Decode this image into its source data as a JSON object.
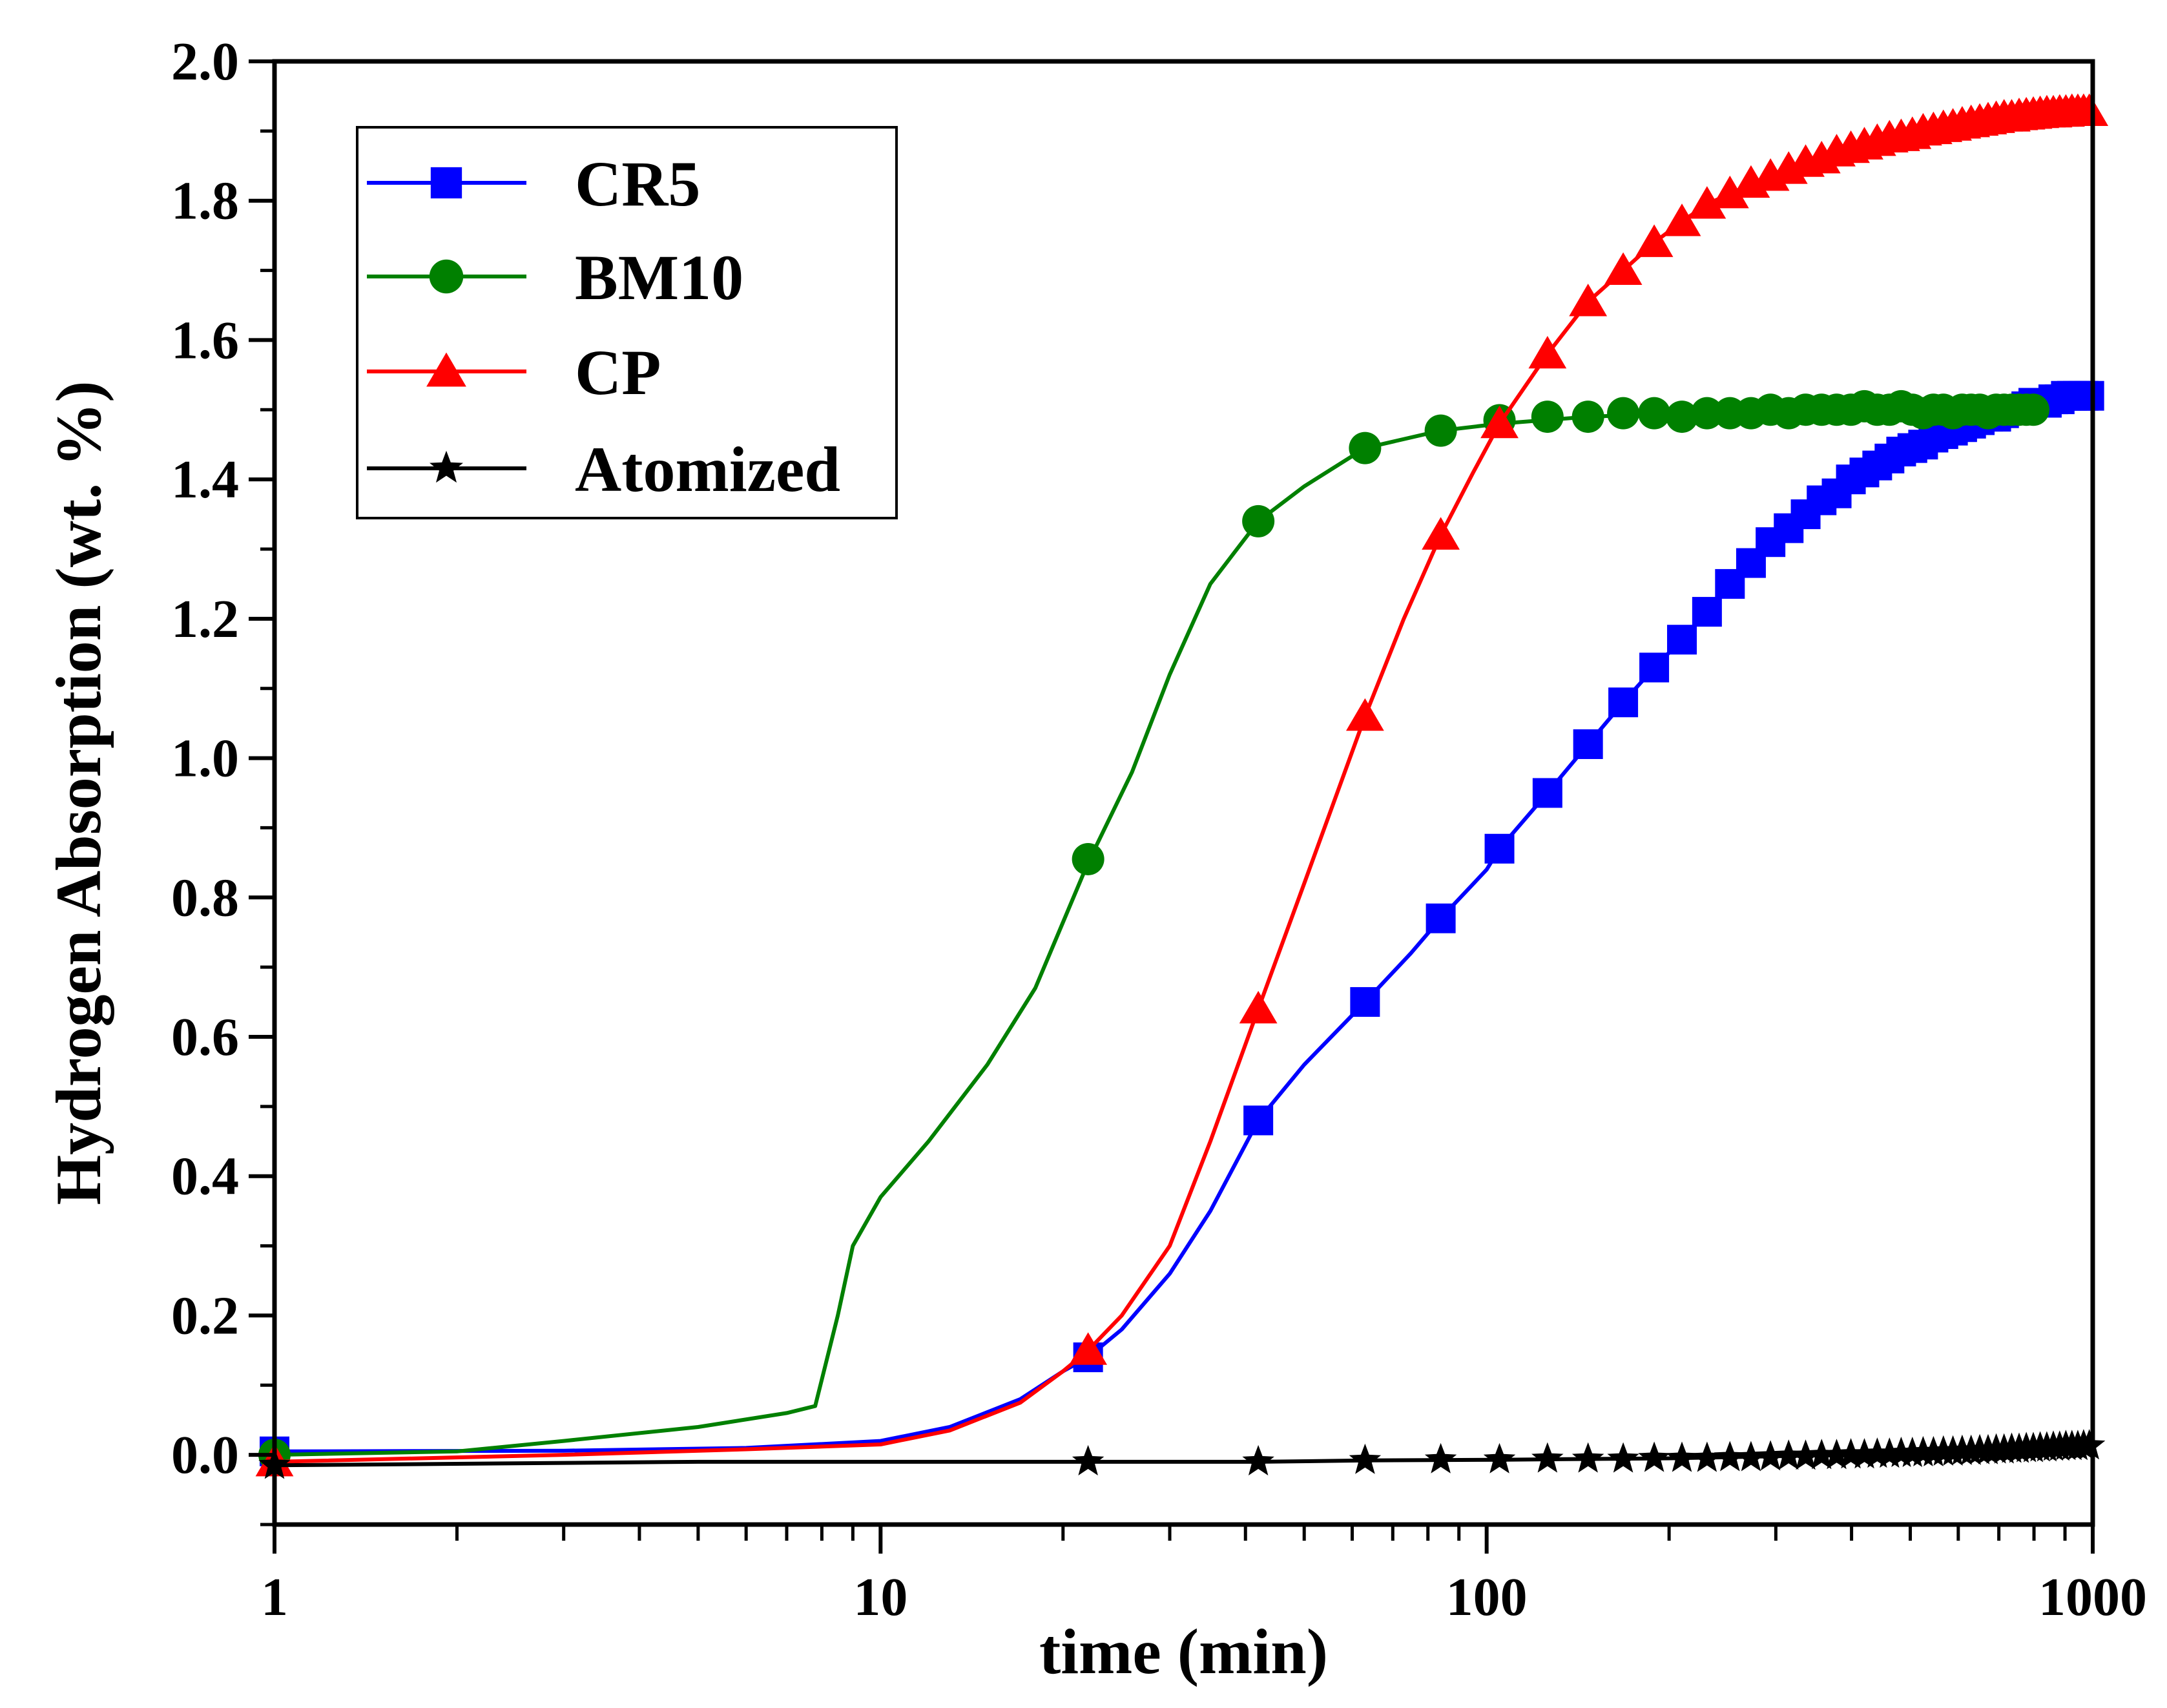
{
  "chart_data": {
    "type": "line",
    "title": "",
    "xlabel": "time (min)",
    "ylabel": "Hydrogen Absorption (wt. %)",
    "x_scale": "log",
    "xlim": [
      1,
      1000
    ],
    "ylim": [
      -0.1,
      2.0
    ],
    "x_ticks": [
      1,
      10,
      100,
      1000
    ],
    "x_tick_labels": [
      "1",
      "10",
      "100",
      "1000"
    ],
    "y_ticks": [
      0.0,
      0.2,
      0.4,
      0.6,
      0.8,
      1.0,
      1.2,
      1.4,
      1.6,
      1.8,
      2.0
    ],
    "y_tick_labels": [
      "0.0",
      "0.2",
      "0.4",
      "0.6",
      "0.8",
      "1.0",
      "1.2",
      "1.4",
      "1.6",
      "1.8",
      "2.0"
    ],
    "grid": false,
    "legend_position": "top-left",
    "series": [
      {
        "name": "CR5",
        "color": "#0000ff",
        "marker": "square",
        "line": [
          [
            1,
            0.005
          ],
          [
            3,
            0.006
          ],
          [
            6,
            0.01
          ],
          [
            10,
            0.02
          ],
          [
            13,
            0.04
          ],
          [
            17,
            0.08
          ],
          [
            20,
            0.12
          ],
          [
            22,
            0.14
          ],
          [
            25,
            0.18
          ],
          [
            30,
            0.26
          ],
          [
            35,
            0.35
          ],
          [
            42,
            0.48
          ],
          [
            50,
            0.56
          ],
          [
            63,
            0.65
          ],
          [
            75,
            0.72
          ],
          [
            84,
            0.77
          ],
          [
            100,
            0.84
          ],
          [
            105,
            0.87
          ],
          [
            126,
            0.95
          ],
          [
            147,
            1.02
          ],
          [
            168,
            1.08
          ],
          [
            189,
            1.13
          ],
          [
            210,
            1.17
          ],
          [
            231,
            1.21
          ],
          [
            252,
            1.25
          ],
          [
            273,
            1.28
          ],
          [
            300,
            1.31
          ],
          [
            350,
            1.35
          ],
          [
            400,
            1.39
          ],
          [
            500,
            1.44
          ],
          [
            600,
            1.47
          ],
          [
            700,
            1.49
          ],
          [
            800,
            1.51
          ],
          [
            1000,
            1.52
          ]
        ],
        "markers": [
          [
            1,
            0.005
          ],
          [
            22,
            0.14
          ],
          [
            42,
            0.48
          ],
          [
            63,
            0.65
          ],
          [
            84,
            0.77
          ],
          [
            105,
            0.87
          ],
          [
            126,
            0.95
          ],
          [
            147,
            1.02
          ],
          [
            168,
            1.08
          ],
          [
            189,
            1.13
          ],
          [
            210,
            1.17
          ],
          [
            231,
            1.21
          ],
          [
            252,
            1.25
          ],
          [
            273,
            1.28
          ],
          [
            294,
            1.31
          ],
          [
            315,
            1.33
          ],
          [
            336,
            1.35
          ],
          [
            357,
            1.37
          ],
          [
            378,
            1.38
          ],
          [
            399,
            1.4
          ],
          [
            420,
            1.41
          ],
          [
            441,
            1.42
          ],
          [
            462,
            1.43
          ],
          [
            483,
            1.44
          ],
          [
            504,
            1.445
          ],
          [
            525,
            1.45
          ],
          [
            546,
            1.46
          ],
          [
            567,
            1.465
          ],
          [
            588,
            1.47
          ],
          [
            609,
            1.475
          ],
          [
            630,
            1.48
          ],
          [
            651,
            1.485
          ],
          [
            672,
            1.49
          ],
          [
            693,
            1.49
          ],
          [
            714,
            1.495
          ],
          [
            735,
            1.5
          ],
          [
            756,
            1.5
          ],
          [
            777,
            1.505
          ],
          [
            798,
            1.51
          ],
          [
            819,
            1.51
          ],
          [
            840,
            1.51
          ],
          [
            861,
            1.515
          ],
          [
            882,
            1.515
          ],
          [
            903,
            1.52
          ],
          [
            924,
            1.52
          ],
          [
            945,
            1.52
          ],
          [
            966,
            1.52
          ],
          [
            987,
            1.52
          ]
        ]
      },
      {
        "name": "BM10",
        "color": "#008000",
        "marker": "circle",
        "line": [
          [
            1,
            0.0
          ],
          [
            2,
            0.005
          ],
          [
            3,
            0.02
          ],
          [
            5,
            0.04
          ],
          [
            7,
            0.06
          ],
          [
            7.8,
            0.07
          ],
          [
            8.5,
            0.2
          ],
          [
            9,
            0.3
          ],
          [
            10,
            0.37
          ],
          [
            12,
            0.45
          ],
          [
            15,
            0.56
          ],
          [
            18,
            0.67
          ],
          [
            22,
            0.85
          ],
          [
            26,
            0.98
          ],
          [
            30,
            1.12
          ],
          [
            35,
            1.25
          ],
          [
            42,
            1.34
          ],
          [
            50,
            1.39
          ],
          [
            63,
            1.445
          ],
          [
            84,
            1.47
          ],
          [
            105,
            1.48
          ],
          [
            147,
            1.49
          ],
          [
            300,
            1.5
          ],
          [
            500,
            1.5
          ],
          [
            800,
            1.5
          ]
        ],
        "markers": [
          [
            1,
            0.0
          ],
          [
            22,
            0.855
          ],
          [
            42,
            1.34
          ],
          [
            63,
            1.445
          ],
          [
            84,
            1.47
          ],
          [
            105,
            1.485
          ],
          [
            126,
            1.49
          ],
          [
            147,
            1.49
          ],
          [
            168,
            1.495
          ],
          [
            189,
            1.495
          ],
          [
            210,
            1.49
          ],
          [
            231,
            1.495
          ],
          [
            252,
            1.495
          ],
          [
            273,
            1.495
          ],
          [
            294,
            1.5
          ],
          [
            315,
            1.495
          ],
          [
            336,
            1.5
          ],
          [
            357,
            1.5
          ],
          [
            378,
            1.5
          ],
          [
            399,
            1.5
          ],
          [
            420,
            1.505
          ],
          [
            441,
            1.5
          ],
          [
            462,
            1.5
          ],
          [
            483,
            1.505
          ],
          [
            504,
            1.5
          ],
          [
            525,
            1.495
          ],
          [
            546,
            1.5
          ],
          [
            567,
            1.5
          ],
          [
            588,
            1.495
          ],
          [
            609,
            1.5
          ],
          [
            630,
            1.5
          ],
          [
            651,
            1.5
          ],
          [
            672,
            1.495
          ],
          [
            693,
            1.5
          ],
          [
            714,
            1.5
          ],
          [
            735,
            1.5
          ],
          [
            756,
            1.5
          ],
          [
            777,
            1.5
          ],
          [
            798,
            1.5
          ]
        ]
      },
      {
        "name": "CP",
        "color": "#ff0000",
        "marker": "triangle",
        "line": [
          [
            1,
            -0.01
          ],
          [
            3,
            0.0
          ],
          [
            6,
            0.008
          ],
          [
            10,
            0.015
          ],
          [
            13,
            0.035
          ],
          [
            17,
            0.075
          ],
          [
            20,
            0.12
          ],
          [
            22,
            0.15
          ],
          [
            25,
            0.2
          ],
          [
            30,
            0.3
          ],
          [
            35,
            0.45
          ],
          [
            42,
            0.64
          ],
          [
            50,
            0.82
          ],
          [
            63,
            1.06
          ],
          [
            73,
            1.2
          ],
          [
            84,
            1.32
          ],
          [
            95,
            1.41
          ],
          [
            105,
            1.48
          ],
          [
            126,
            1.58
          ],
          [
            147,
            1.655
          ],
          [
            168,
            1.7
          ],
          [
            189,
            1.74
          ],
          [
            210,
            1.77
          ],
          [
            231,
            1.795
          ],
          [
            300,
            1.84
          ],
          [
            400,
            1.875
          ],
          [
            500,
            1.895
          ],
          [
            700,
            1.915
          ],
          [
            1000,
            1.925
          ]
        ],
        "markers": [
          [
            1,
            -0.01
          ],
          [
            22,
            0.15
          ],
          [
            42,
            0.64
          ],
          [
            63,
            1.06
          ],
          [
            84,
            1.32
          ],
          [
            105,
            1.48
          ],
          [
            126,
            1.58
          ],
          [
            147,
            1.655
          ],
          [
            168,
            1.7
          ],
          [
            189,
            1.74
          ],
          [
            210,
            1.77
          ],
          [
            231,
            1.795
          ],
          [
            252,
            1.81
          ],
          [
            273,
            1.825
          ],
          [
            294,
            1.835
          ],
          [
            315,
            1.845
          ],
          [
            336,
            1.855
          ],
          [
            357,
            1.86
          ],
          [
            378,
            1.87
          ],
          [
            399,
            1.875
          ],
          [
            420,
            1.88
          ],
          [
            441,
            1.885
          ],
          [
            462,
            1.89
          ],
          [
            483,
            1.892
          ],
          [
            504,
            1.895
          ],
          [
            525,
            1.9
          ],
          [
            546,
            1.902
          ],
          [
            567,
            1.905
          ],
          [
            588,
            1.907
          ],
          [
            609,
            1.91
          ],
          [
            630,
            1.912
          ],
          [
            651,
            1.914
          ],
          [
            672,
            1.916
          ],
          [
            693,
            1.918
          ],
          [
            714,
            1.92
          ],
          [
            735,
            1.92
          ],
          [
            756,
            1.922
          ],
          [
            777,
            1.923
          ],
          [
            798,
            1.924
          ],
          [
            819,
            1.925
          ],
          [
            840,
            1.926
          ],
          [
            861,
            1.926
          ],
          [
            882,
            1.927
          ],
          [
            903,
            1.927
          ],
          [
            924,
            1.928
          ],
          [
            945,
            1.928
          ],
          [
            966,
            1.928
          ],
          [
            987,
            1.928
          ]
        ]
      },
      {
        "name": "Atomized",
        "color": "#000000",
        "marker": "star",
        "line": [
          [
            1,
            -0.015
          ],
          [
            5,
            -0.01
          ],
          [
            22,
            -0.01
          ],
          [
            42,
            -0.01
          ],
          [
            63,
            -0.008
          ],
          [
            105,
            -0.007
          ],
          [
            200,
            -0.005
          ],
          [
            300,
            -0.002
          ],
          [
            500,
            0.002
          ],
          [
            700,
            0.007
          ],
          [
            1000,
            0.012
          ]
        ],
        "markers": [
          [
            1,
            -0.015
          ],
          [
            22,
            -0.01
          ],
          [
            42,
            -0.01
          ],
          [
            63,
            -0.008
          ],
          [
            84,
            -0.007
          ],
          [
            105,
            -0.007
          ],
          [
            126,
            -0.006
          ],
          [
            147,
            -0.006
          ],
          [
            168,
            -0.006
          ],
          [
            189,
            -0.005
          ],
          [
            210,
            -0.005
          ],
          [
            231,
            -0.005
          ],
          [
            252,
            -0.004
          ],
          [
            273,
            -0.004
          ],
          [
            294,
            -0.003
          ],
          [
            315,
            -0.002
          ],
          [
            336,
            -0.002
          ],
          [
            357,
            -0.001
          ],
          [
            378,
            -0.001
          ],
          [
            399,
            0.0
          ],
          [
            420,
            0.0
          ],
          [
            441,
            0.001
          ],
          [
            462,
            0.001
          ],
          [
            483,
            0.002
          ],
          [
            504,
            0.002
          ],
          [
            525,
            0.003
          ],
          [
            546,
            0.003
          ],
          [
            567,
            0.004
          ],
          [
            588,
            0.004
          ],
          [
            609,
            0.005
          ],
          [
            630,
            0.005
          ],
          [
            651,
            0.006
          ],
          [
            672,
            0.006
          ],
          [
            693,
            0.007
          ],
          [
            714,
            0.007
          ],
          [
            735,
            0.008
          ],
          [
            756,
            0.008
          ],
          [
            777,
            0.009
          ],
          [
            798,
            0.009
          ],
          [
            819,
            0.01
          ],
          [
            840,
            0.01
          ],
          [
            861,
            0.011
          ],
          [
            882,
            0.011
          ],
          [
            903,
            0.012
          ],
          [
            924,
            0.012
          ],
          [
            945,
            0.012
          ],
          [
            966,
            0.013
          ],
          [
            987,
            0.013
          ]
        ]
      }
    ]
  }
}
